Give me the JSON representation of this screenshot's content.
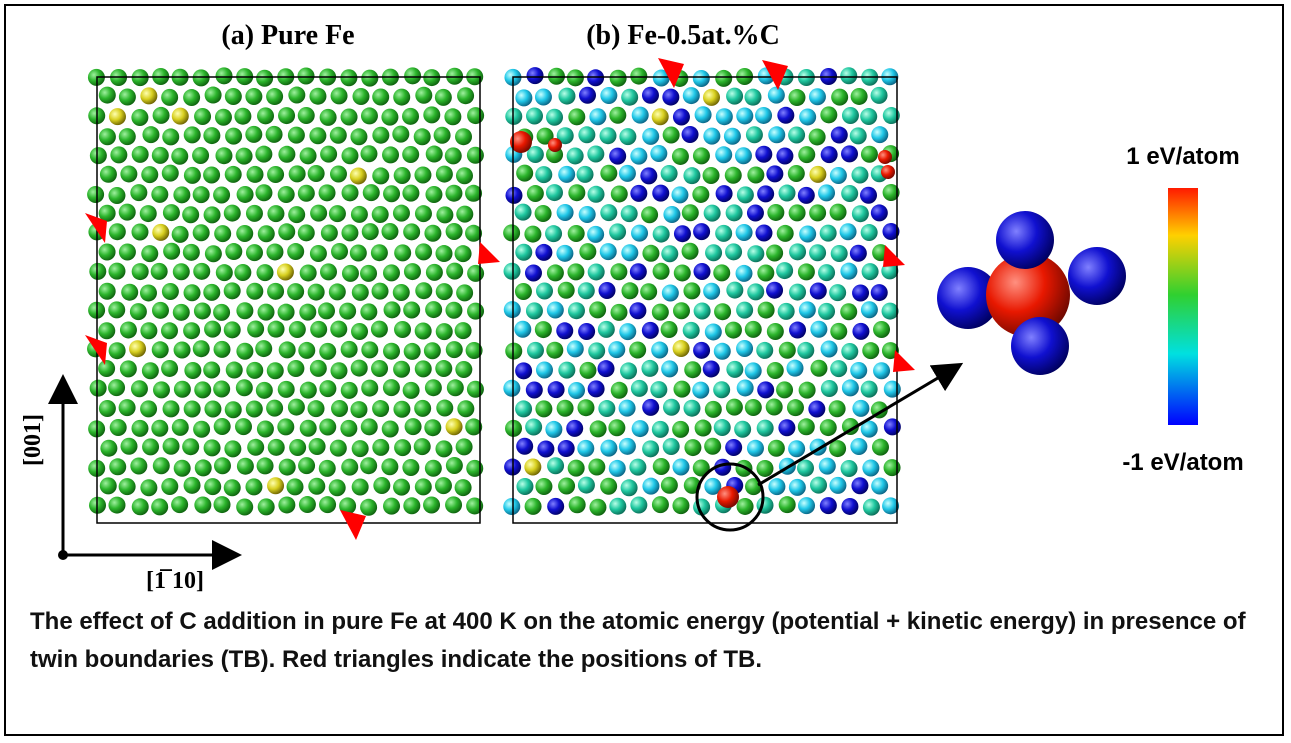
{
  "panels": [
    {
      "label": "(a) Pure Fe"
    },
    {
      "label": "(b) Fe-0.5at.%C"
    }
  ],
  "colorbar": {
    "max_label": "1 eV/atom",
    "min_label": "-1 eV/atom"
  },
  "axes": {
    "vertical": "[001]",
    "horizontal": "[1̅ 10]"
  },
  "caption": "The effect of C addition in pure Fe at 400 K on the atomic energy (potential + kinetic energy) in presence of twin boundaries (TB). Red triangles indicate the positions of TB."
}
